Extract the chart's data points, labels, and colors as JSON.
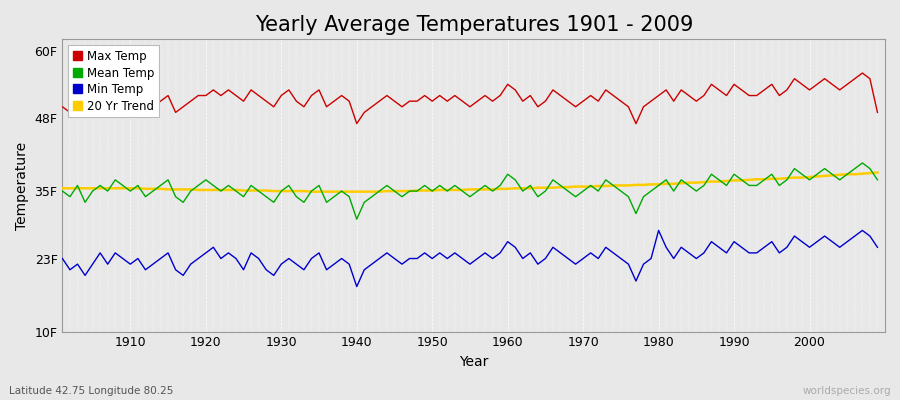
{
  "title": "Yearly Average Temperatures 1901 - 2009",
  "xlabel": "Year",
  "ylabel": "Temperature",
  "subtitle_left": "Latitude 42.75 Longitude 80.25",
  "subtitle_right": "worldspecies.org",
  "ylim": [
    10,
    62
  ],
  "yticks": [
    10,
    23,
    35,
    48,
    60
  ],
  "ytick_labels": [
    "10F",
    "23F",
    "35F",
    "48F",
    "60F"
  ],
  "xlim": [
    1901,
    2010
  ],
  "xticks": [
    1910,
    1920,
    1930,
    1940,
    1950,
    1960,
    1970,
    1980,
    1990,
    2000
  ],
  "years": [
    1901,
    1902,
    1903,
    1904,
    1905,
    1906,
    1907,
    1908,
    1909,
    1910,
    1911,
    1912,
    1913,
    1914,
    1915,
    1916,
    1917,
    1918,
    1919,
    1920,
    1921,
    1922,
    1923,
    1924,
    1925,
    1926,
    1927,
    1928,
    1929,
    1930,
    1931,
    1932,
    1933,
    1934,
    1935,
    1936,
    1937,
    1938,
    1939,
    1940,
    1941,
    1942,
    1943,
    1944,
    1945,
    1946,
    1947,
    1948,
    1949,
    1950,
    1951,
    1952,
    1953,
    1954,
    1955,
    1956,
    1957,
    1958,
    1959,
    1960,
    1961,
    1962,
    1963,
    1964,
    1965,
    1966,
    1967,
    1968,
    1969,
    1970,
    1971,
    1972,
    1973,
    1974,
    1975,
    1976,
    1977,
    1978,
    1979,
    1980,
    1981,
    1982,
    1983,
    1984,
    1985,
    1986,
    1987,
    1988,
    1989,
    1990,
    1991,
    1992,
    1993,
    1994,
    1995,
    1996,
    1997,
    1998,
    1999,
    2000,
    2001,
    2002,
    2003,
    2004,
    2005,
    2006,
    2007,
    2008,
    2009
  ],
  "max_temp": [
    50,
    49,
    50,
    49,
    51,
    50,
    51,
    52,
    51,
    50,
    51,
    49,
    50,
    51,
    52,
    49,
    50,
    51,
    52,
    52,
    53,
    52,
    53,
    52,
    51,
    53,
    52,
    51,
    50,
    52,
    53,
    51,
    50,
    52,
    53,
    50,
    51,
    52,
    51,
    47,
    49,
    50,
    51,
    52,
    51,
    50,
    51,
    51,
    52,
    51,
    52,
    51,
    52,
    51,
    50,
    51,
    52,
    51,
    52,
    54,
    53,
    51,
    52,
    50,
    51,
    53,
    52,
    51,
    50,
    51,
    52,
    51,
    53,
    52,
    51,
    50,
    47,
    50,
    51,
    52,
    53,
    51,
    53,
    52,
    51,
    52,
    54,
    53,
    52,
    54,
    53,
    52,
    52,
    53,
    54,
    52,
    53,
    55,
    54,
    53,
    54,
    55,
    54,
    53,
    54,
    55,
    56,
    55,
    49
  ],
  "mean_temp": [
    35,
    34,
    36,
    33,
    35,
    36,
    35,
    37,
    36,
    35,
    36,
    34,
    35,
    36,
    37,
    34,
    33,
    35,
    36,
    37,
    36,
    35,
    36,
    35,
    34,
    36,
    35,
    34,
    33,
    35,
    36,
    34,
    33,
    35,
    36,
    33,
    34,
    35,
    34,
    30,
    33,
    34,
    35,
    36,
    35,
    34,
    35,
    35,
    36,
    35,
    36,
    35,
    36,
    35,
    34,
    35,
    36,
    35,
    36,
    38,
    37,
    35,
    36,
    34,
    35,
    37,
    36,
    35,
    34,
    35,
    36,
    35,
    37,
    36,
    35,
    34,
    31,
    34,
    35,
    36,
    37,
    35,
    37,
    36,
    35,
    36,
    38,
    37,
    36,
    38,
    37,
    36,
    36,
    37,
    38,
    36,
    37,
    39,
    38,
    37,
    38,
    39,
    38,
    37,
    38,
    39,
    40,
    39,
    37
  ],
  "min_temp": [
    23,
    21,
    22,
    20,
    22,
    24,
    22,
    24,
    23,
    22,
    23,
    21,
    22,
    23,
    24,
    21,
    20,
    22,
    23,
    24,
    25,
    23,
    24,
    23,
    21,
    24,
    23,
    21,
    20,
    22,
    23,
    22,
    21,
    23,
    24,
    21,
    22,
    23,
    22,
    18,
    21,
    22,
    23,
    24,
    23,
    22,
    23,
    23,
    24,
    23,
    24,
    23,
    24,
    23,
    22,
    23,
    24,
    23,
    24,
    26,
    25,
    23,
    24,
    22,
    23,
    25,
    24,
    23,
    22,
    23,
    24,
    23,
    25,
    24,
    23,
    22,
    19,
    22,
    23,
    28,
    25,
    23,
    25,
    24,
    23,
    24,
    26,
    25,
    24,
    26,
    25,
    24,
    24,
    25,
    26,
    24,
    25,
    27,
    26,
    25,
    26,
    27,
    26,
    25,
    26,
    27,
    28,
    27,
    25
  ],
  "trend": [
    35.5,
    35.5,
    35.5,
    35.5,
    35.5,
    35.5,
    35.5,
    35.5,
    35.5,
    35.5,
    35.5,
    35.4,
    35.4,
    35.4,
    35.3,
    35.3,
    35.3,
    35.3,
    35.2,
    35.2,
    35.2,
    35.2,
    35.2,
    35.2,
    35.1,
    35.1,
    35.1,
    35.1,
    35.0,
    35.0,
    35.0,
    35.0,
    35.0,
    34.9,
    34.9,
    34.9,
    34.9,
    34.9,
    34.9,
    34.9,
    34.9,
    34.9,
    34.9,
    35.0,
    35.0,
    35.0,
    35.0,
    35.1,
    35.1,
    35.1,
    35.2,
    35.2,
    35.2,
    35.2,
    35.3,
    35.3,
    35.3,
    35.3,
    35.4,
    35.4,
    35.5,
    35.5,
    35.5,
    35.6,
    35.6,
    35.6,
    35.7,
    35.7,
    35.8,
    35.8,
    35.8,
    35.9,
    35.9,
    36.0,
    36.0,
    36.0,
    36.1,
    36.1,
    36.2,
    36.2,
    36.3,
    36.3,
    36.4,
    36.5,
    36.5,
    36.6,
    36.7,
    36.7,
    36.8,
    36.9,
    36.9,
    37.0,
    37.1,
    37.1,
    37.2,
    37.2,
    37.3,
    37.4,
    37.4,
    37.5,
    37.6,
    37.7,
    37.8,
    37.9,
    38.0,
    38.0,
    38.1,
    38.2,
    38.3
  ],
  "max_color": "#cc0000",
  "mean_color": "#00aa00",
  "min_color": "#0000cc",
  "trend_color": "#ffcc00",
  "bg_color": "#e8e8e8",
  "plot_bg_color": "#e8e8e8",
  "grid_color": "#ffffff",
  "title_fontsize": 15,
  "axis_fontsize": 10,
  "tick_fontsize": 9,
  "linewidth": 1.0,
  "trend_linewidth": 1.8
}
